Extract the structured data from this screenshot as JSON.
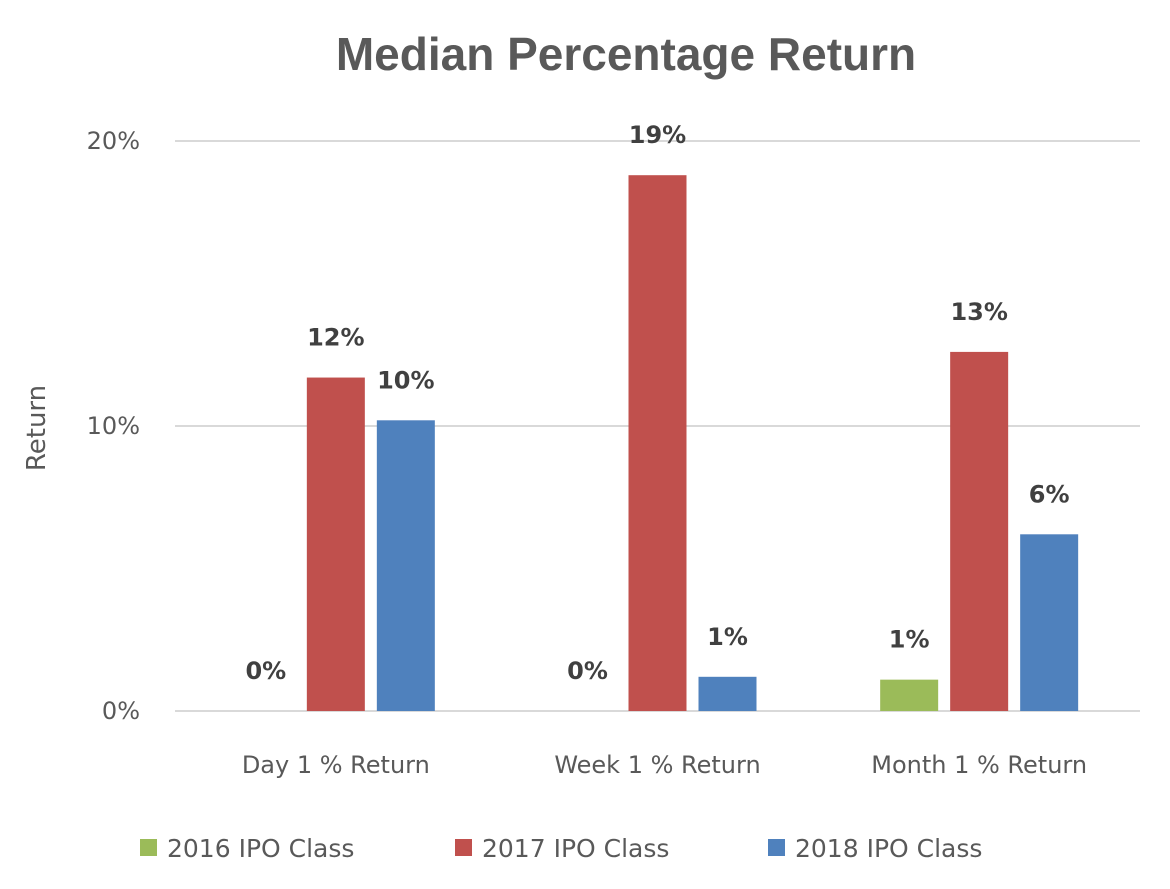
{
  "chart_data": {
    "type": "bar",
    "title": "Median Percentage Return",
    "xlabel": "",
    "ylabel": "Return",
    "categories": [
      "Day 1 % Return",
      "Week 1 % Return",
      "Month 1 % Return"
    ],
    "series": [
      {
        "name": "2016 IPO Class",
        "color": "#9bbb59",
        "values": [
          0,
          0,
          1.1
        ],
        "labels": [
          "0%",
          "0%",
          "1%"
        ]
      },
      {
        "name": "2017 IPO Class",
        "color": "#c0504d",
        "values": [
          11.7,
          18.8,
          12.6
        ],
        "labels": [
          "12%",
          "19%",
          "13%"
        ]
      },
      {
        "name": "2018 IPO Class",
        "color": "#4f81bd",
        "values": [
          10.2,
          1.2,
          6.2
        ],
        "labels": [
          "10%",
          "1%",
          "6%"
        ]
      }
    ],
    "ylim": [
      0,
      20
    ],
    "yticks": [
      0,
      10,
      20
    ],
    "ytick_labels": [
      "0%",
      "10%",
      "20%"
    ],
    "grid": true,
    "legend_position": "bottom"
  }
}
